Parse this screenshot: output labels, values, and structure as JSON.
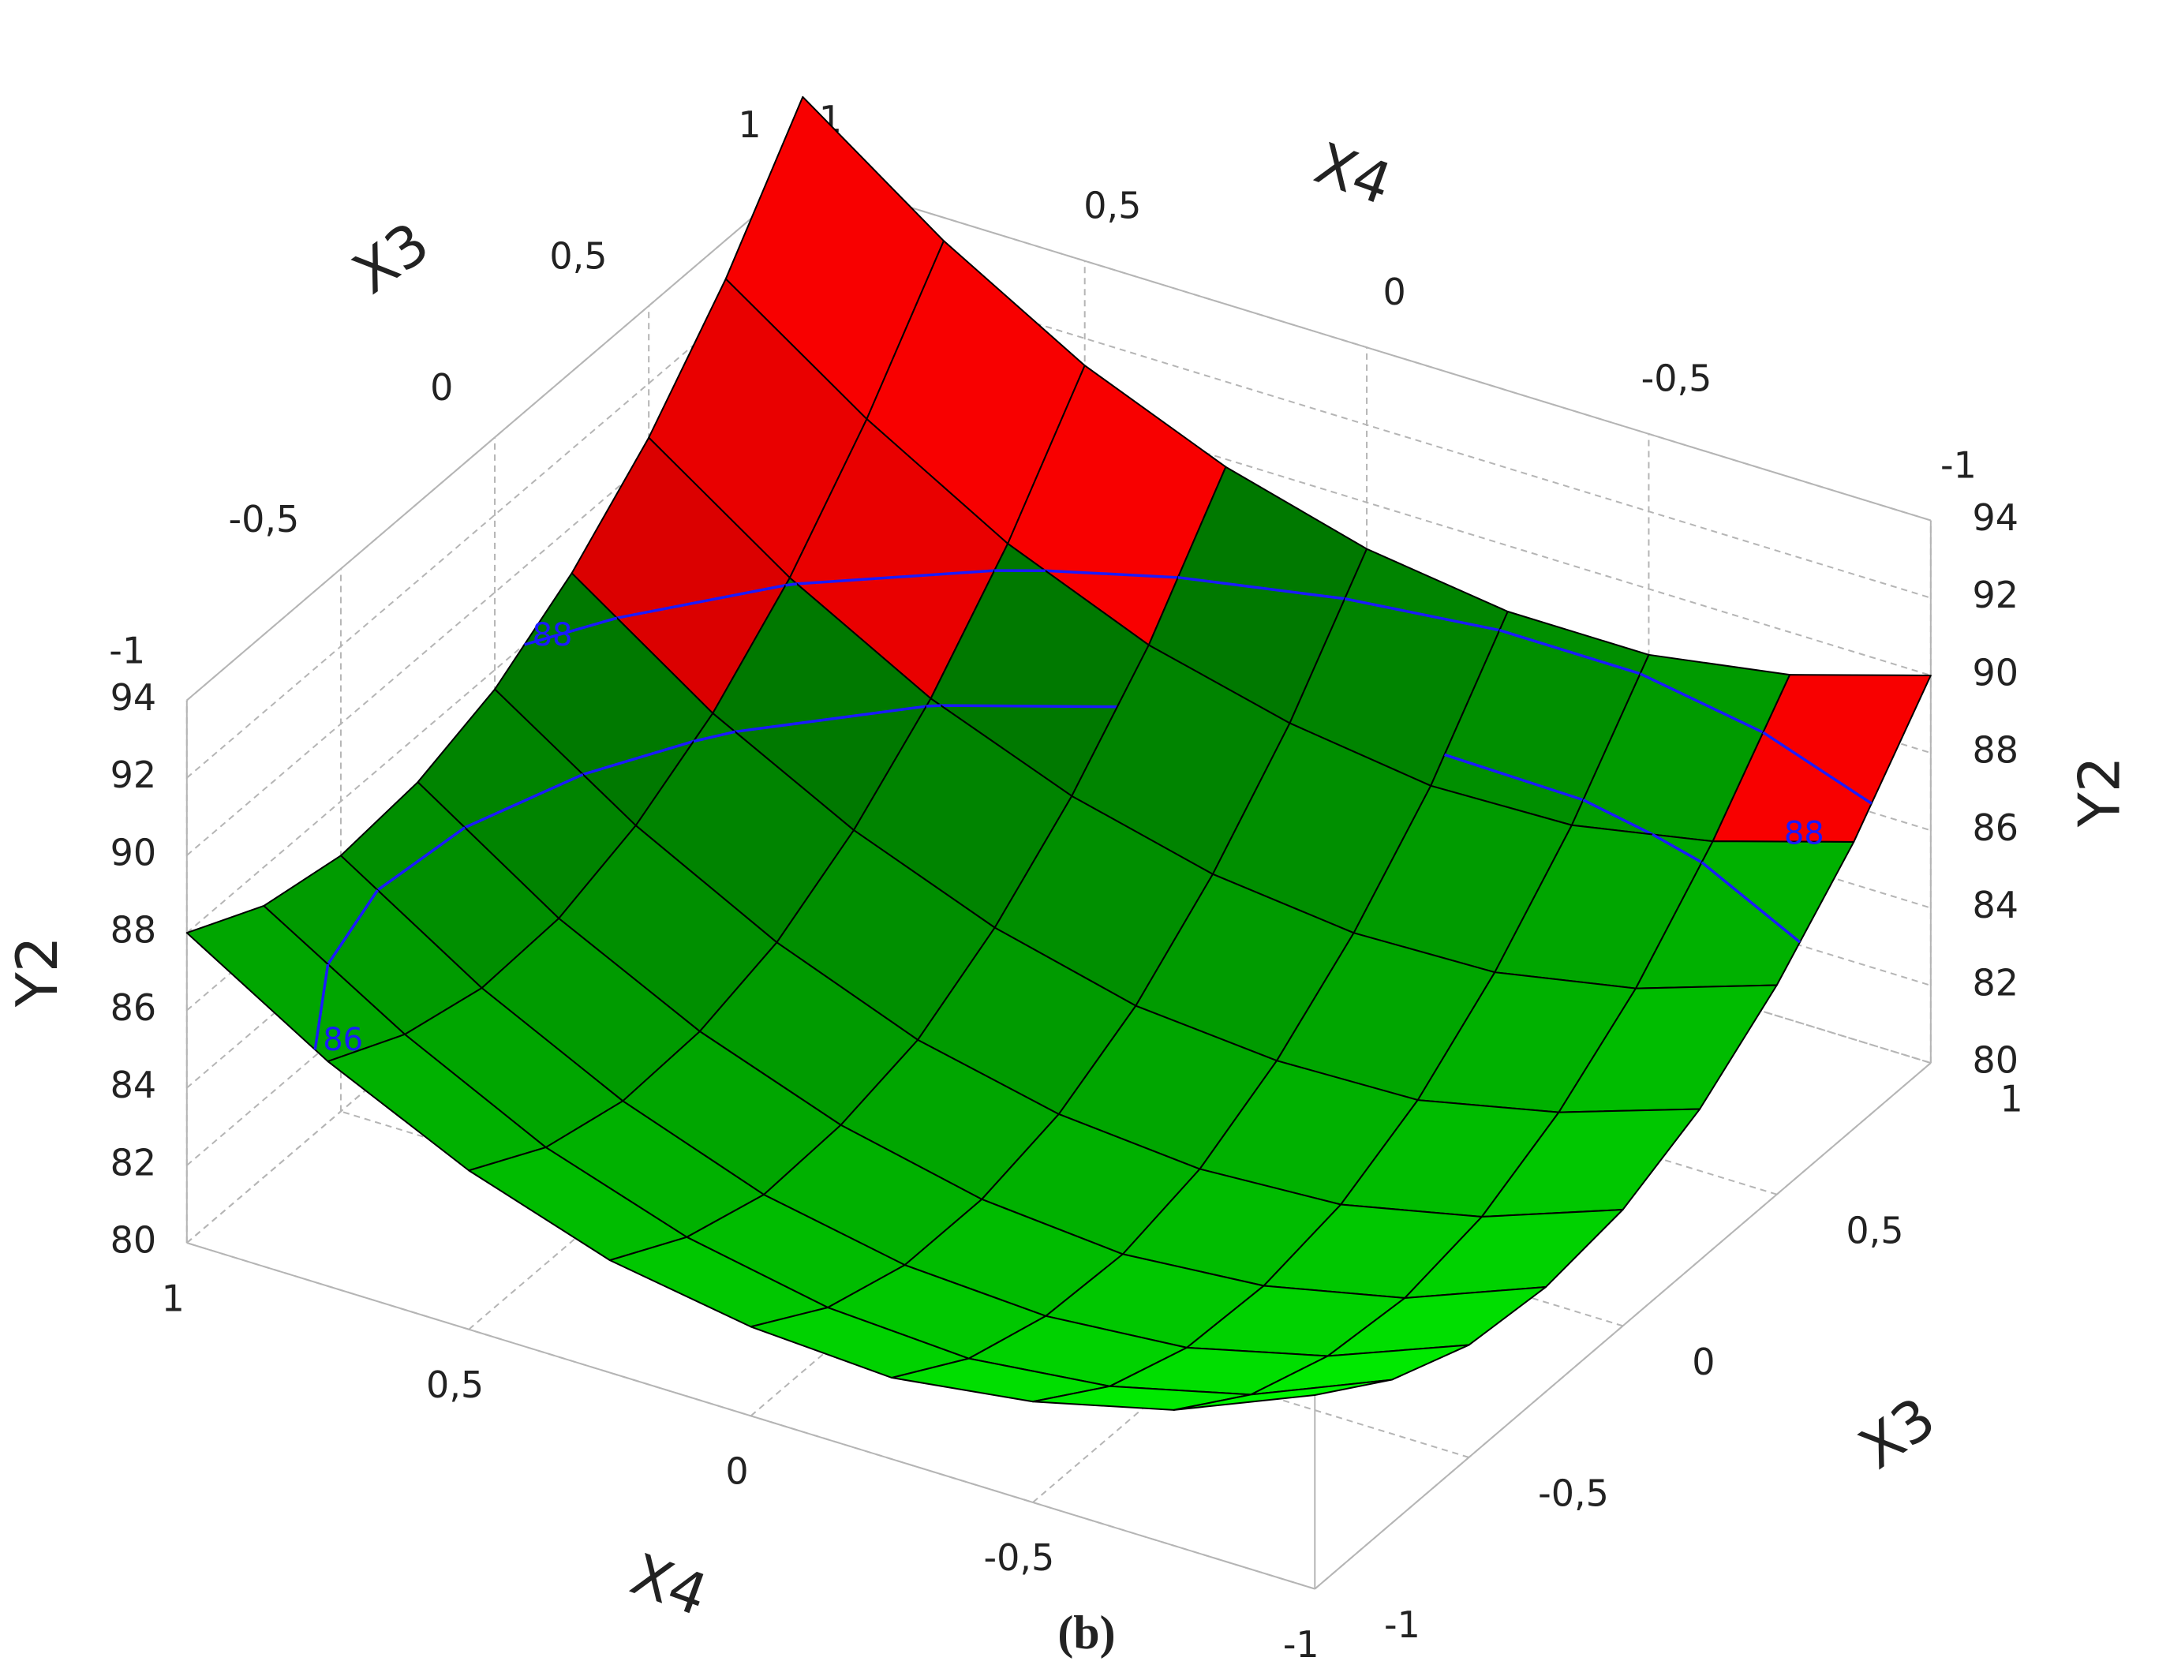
{
  "chart_data": {
    "type": "surface",
    "xlabel": "X4",
    "ylabel": "X3",
    "zlabel": "Y2",
    "caption": "(b)",
    "x": [
      -1,
      -0.75,
      -0.5,
      -0.25,
      0,
      0.25,
      0.5,
      0.75,
      1
    ],
    "y": [
      -1,
      -0.75,
      -0.5,
      -0.25,
      0,
      0.25,
      0.5,
      0.75,
      1
    ],
    "z": [
      [
        85.0,
        83.5,
        82.6,
        82.1,
        82.3,
        82.9,
        84.1,
        85.8,
        88.0
      ],
      [
        83.7,
        82.2,
        81.3,
        80.9,
        81.1,
        81.8,
        83.0,
        84.8,
        87.0
      ],
      [
        82.9,
        81.5,
        80.6,
        80.3,
        80.5,
        81.2,
        82.5,
        84.3,
        86.6
      ],
      [
        82.7,
        81.3,
        80.5,
        80.2,
        80.5,
        81.3,
        82.6,
        84.4,
        86.8
      ],
      [
        83.0,
        81.7,
        80.9,
        80.7,
        81.0,
        81.8,
        83.2,
        85.1,
        87.5
      ],
      [
        83.9,
        82.7,
        81.9,
        81.8,
        82.1,
        83.0,
        84.4,
        86.3,
        88.8
      ],
      [
        85.4,
        84.2,
        83.5,
        83.4,
        83.8,
        84.7,
        86.1,
        88.1,
        90.6
      ],
      [
        87.4,
        86.3,
        85.6,
        85.5,
        86.0,
        86.9,
        88.4,
        90.5,
        93.0
      ],
      [
        90.0,
        88.9,
        88.3,
        88.3,
        88.8,
        89.8,
        91.3,
        93.4,
        96.0
      ]
    ],
    "xlim": [
      -1,
      1
    ],
    "xticks": [
      -1,
      {
        "value": -0.5,
        "label": "-0,5"
      },
      0,
      {
        "value": 0.5,
        "label": "0,5"
      },
      1
    ],
    "ylim": [
      -1,
      1
    ],
    "yticks": [
      -1,
      {
        "value": -0.5,
        "label": "-0,5"
      },
      0,
      {
        "value": 0.5,
        "label": "0,5"
      },
      1
    ],
    "zlim": [
      80,
      94
    ],
    "zticks": [
      80,
      82,
      84,
      86,
      88,
      90,
      92,
      94
    ],
    "contour_levels": [
      86,
      88
    ],
    "contour_color": "#1a1aff",
    "colors": [
      "#00ff00",
      "#ff0000"
    ],
    "grid": true
  }
}
